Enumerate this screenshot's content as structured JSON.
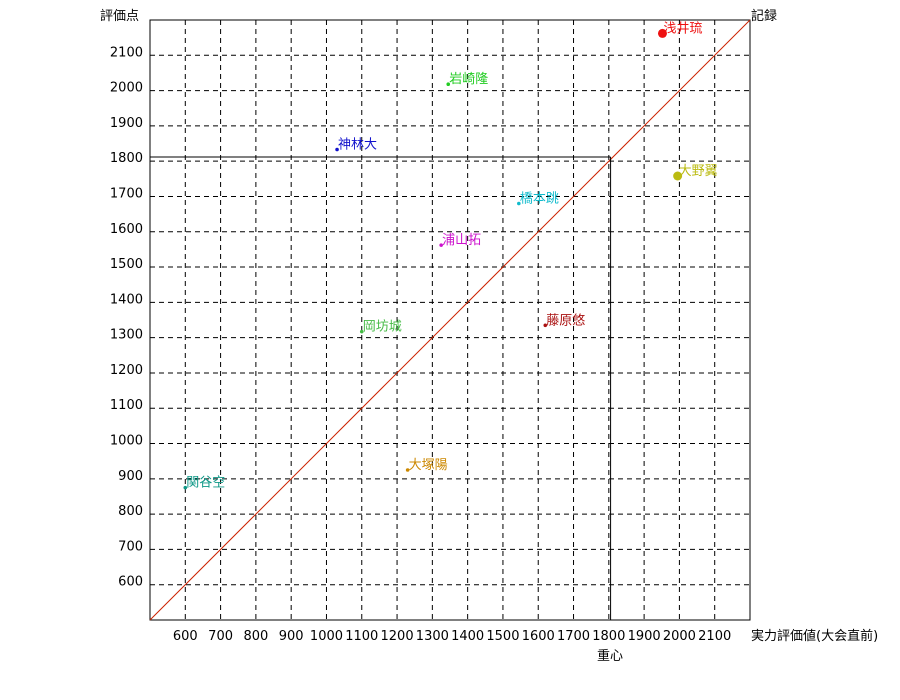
{
  "chart_data": {
    "type": "scatter",
    "title": "",
    "xlabel": "実力評価値(大会直前)",
    "ylabel": "評価点",
    "diagonal_label": "記録",
    "centroid_label": "重心",
    "xlim": [
      500,
      2200
    ],
    "ylim": [
      500,
      2200
    ],
    "x_ticks": [
      600,
      700,
      800,
      900,
      1000,
      1100,
      1200,
      1300,
      1400,
      1500,
      1600,
      1700,
      1800,
      1900,
      2000,
      2100
    ],
    "y_ticks": [
      600,
      700,
      800,
      900,
      1000,
      1100,
      1200,
      1300,
      1400,
      1500,
      1600,
      1700,
      1800,
      1900,
      2000,
      2100
    ],
    "grid": true,
    "diagonal_color": "#cc2200",
    "centroid": {
      "x": 1805,
      "y": 1812
    },
    "points": [
      {
        "name": "浅井琉",
        "x": 1952,
        "y": 2162,
        "color": "#ee1111",
        "marker": "big"
      },
      {
        "name": "岩崎隆",
        "x": 1345,
        "y": 2018,
        "color": "#22cc22",
        "marker": "small"
      },
      {
        "name": "神林大",
        "x": 1030,
        "y": 1833,
        "color": "#1111cc",
        "marker": "small"
      },
      {
        "name": "大野翼",
        "x": 1995,
        "y": 1758,
        "color": "#bbbb11",
        "marker": "big"
      },
      {
        "name": "橋本跳",
        "x": 1545,
        "y": 1680,
        "color": "#11bbcc",
        "marker": "small"
      },
      {
        "name": "浦山拓",
        "x": 1325,
        "y": 1562,
        "color": "#cc11cc",
        "marker": "small"
      },
      {
        "name": "藤原悠",
        "x": 1620,
        "y": 1335,
        "color": "#aa1111",
        "marker": "small"
      },
      {
        "name": "岡坊城",
        "x": 1100,
        "y": 1317,
        "color": "#44bb44",
        "marker": "small"
      },
      {
        "name": "大塚陽",
        "x": 1230,
        "y": 925,
        "color": "#cc8800",
        "marker": "small"
      },
      {
        "name": "関谷空",
        "x": 600,
        "y": 875,
        "color": "#119988",
        "marker": "small"
      }
    ]
  }
}
